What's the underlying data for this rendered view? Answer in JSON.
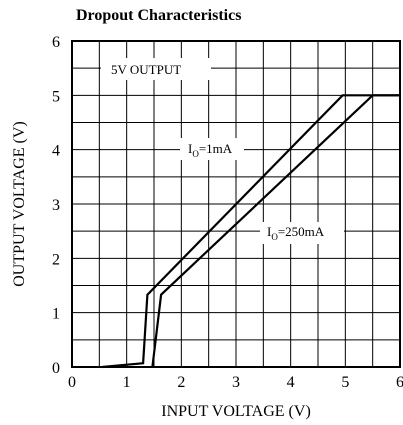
{
  "chart_data": {
    "type": "line",
    "title": "Dropout Characteristics",
    "xlabel": "INPUT VOLTAGE (V)",
    "ylabel": "OUTPUT VOLTAGE (V)",
    "xlim": [
      0,
      6
    ],
    "ylim": [
      0,
      6
    ],
    "xticks": [
      "0",
      "1",
      "2",
      "3",
      "4",
      "5",
      "6"
    ],
    "yticks": [
      "0",
      "1",
      "2",
      "3",
      "4",
      "5",
      "6"
    ],
    "grid": true,
    "annotations": {
      "box_label": "5V OUTPUT",
      "io_1ma": {
        "main": "I",
        "sub": "O",
        "rest": "=1mA"
      },
      "io_250ma": {
        "main": "I",
        "sub": "O",
        "rest": "=250mA"
      }
    },
    "series": [
      {
        "label": "I_O=1mA",
        "points": [
          [
            0.55,
            0.0
          ],
          [
            1.3,
            0.07
          ],
          [
            1.38,
            1.33
          ],
          [
            4.95,
            5.0
          ],
          [
            6.0,
            5.0
          ]
        ]
      },
      {
        "label": "I_O=250mA",
        "points": [
          [
            1.47,
            0.0
          ],
          [
            1.63,
            1.33
          ],
          [
            5.5,
            5.0
          ],
          [
            6.0,
            5.0
          ]
        ]
      }
    ]
  }
}
